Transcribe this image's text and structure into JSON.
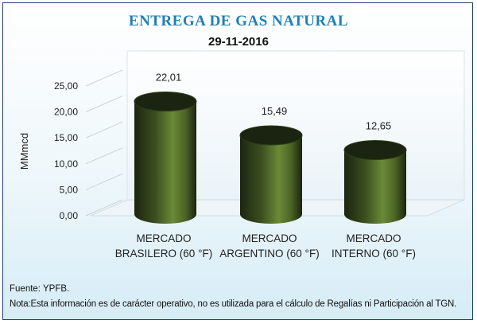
{
  "header": {
    "title": "ENTREGA DE GAS NATURAL",
    "subtitle": "29-11-2016"
  },
  "footer": {
    "source": "Fuente: YPFB.",
    "note": "Nota:Esta información es de carácter operativo, no es utilizada para el cálculo de Regalías ni Participación al TGN."
  },
  "chart_data": {
    "type": "bar",
    "title": "ENTREGA DE GAS NATURAL",
    "subtitle": "29-11-2016",
    "ylabel": "MMmcd",
    "xlabel": "",
    "categories": [
      [
        "MERCADO",
        "BRASILERO (60 °F)"
      ],
      [
        "MERCADO",
        "ARGENTINO (60 °F)"
      ],
      [
        "MERCADO",
        "INTERNO (60 °F)"
      ]
    ],
    "values": [
      22.01,
      15.49,
      12.65
    ],
    "value_labels": [
      "22,01",
      "15,49",
      "12,65"
    ],
    "ylim": [
      0,
      25
    ],
    "yticks": [
      "0,00",
      "5,00",
      "10,00",
      "15,00",
      "20,00",
      "25,00"
    ],
    "grid": false,
    "bar_style": "3d-cylinder",
    "colors": {
      "bar_dark": "#1c2410",
      "bar_light": "#6b8a36",
      "bar_top": "#1a2410",
      "title": "#1e7fb8",
      "frame": "#1f3f74"
    }
  }
}
